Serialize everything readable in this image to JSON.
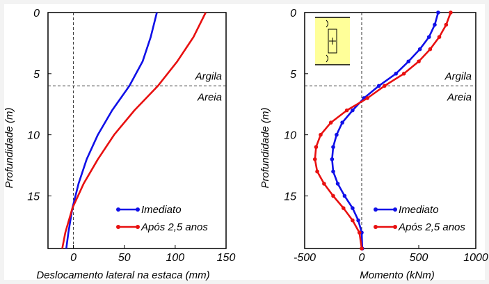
{
  "chart_data": [
    {
      "type": "line",
      "xlabel": "Deslocamento lateral na estaca (mm)",
      "ylabel": "Profundidade (m)",
      "xlim": [
        -25,
        150
      ],
      "ylim": [
        19.3,
        0
      ],
      "xticks": [
        0,
        50,
        100,
        150
      ],
      "yticks": [
        0,
        5,
        10,
        15
      ],
      "boundary": {
        "depth": 6,
        "label_above": "Argila",
        "label_below": "Areia"
      },
      "zero_line": 0,
      "legend": "bottom-right",
      "series": [
        {
          "name": "Imediato",
          "color": "#1010e8",
          "markers": false,
          "points": [
            [
              82,
              0
            ],
            [
              76,
              2
            ],
            [
              68,
              4
            ],
            [
              55,
              6
            ],
            [
              38,
              8
            ],
            [
              24,
              10
            ],
            [
              13,
              12
            ],
            [
              5,
              14
            ],
            [
              -1,
              16
            ],
            [
              -5,
              18
            ],
            [
              -7,
              19.3
            ]
          ]
        },
        {
          "name": "Após 2,5 anos",
          "color": "#e81010",
          "markers": false,
          "points": [
            [
              130,
              0
            ],
            [
              118,
              2
            ],
            [
              102,
              4
            ],
            [
              83,
              6
            ],
            [
              60,
              8
            ],
            [
              40,
              10
            ],
            [
              24,
              12
            ],
            [
              10,
              14
            ],
            [
              -1,
              16
            ],
            [
              -8,
              18
            ],
            [
              -11,
              19.3
            ]
          ]
        }
      ]
    },
    {
      "type": "line",
      "xlabel": "Momento (kNm)",
      "ylabel": "Profundidade (m)",
      "xlim": [
        -500,
        1000
      ],
      "ylim": [
        19.3,
        0
      ],
      "xticks": [
        -500,
        0,
        500,
        1000
      ],
      "yticks": [
        0,
        5,
        10,
        15
      ],
      "boundary": {
        "depth": 6,
        "label_above": "Argila",
        "label_below": "Areia"
      },
      "zero_line": 0,
      "legend": "bottom-right",
      "inset": "pile-moment-diagram",
      "series": [
        {
          "name": "Imediato",
          "color": "#1010e8",
          "markers": true,
          "points": [
            [
              670,
              0
            ],
            [
              640,
              1
            ],
            [
              590,
              2
            ],
            [
              510,
              3
            ],
            [
              410,
              4
            ],
            [
              300,
              5
            ],
            [
              150,
              6
            ],
            [
              20,
              7
            ],
            [
              -80,
              8
            ],
            [
              -170,
              9
            ],
            [
              -220,
              10
            ],
            [
              -250,
              11
            ],
            [
              -260,
              12
            ],
            [
              -250,
              13
            ],
            [
              -210,
              14
            ],
            [
              -150,
              15
            ],
            [
              -80,
              16
            ],
            [
              -30,
              17
            ],
            [
              0,
              18
            ],
            [
              5,
              19.3
            ]
          ]
        },
        {
          "name": "Após 2,5 anos",
          "color": "#e81010",
          "markers": true,
          "points": [
            [
              780,
              0
            ],
            [
              740,
              1
            ],
            [
              680,
              2
            ],
            [
              600,
              3
            ],
            [
              500,
              4
            ],
            [
              370,
              5
            ],
            [
              200,
              6
            ],
            [
              50,
              7
            ],
            [
              -130,
              8
            ],
            [
              -270,
              9
            ],
            [
              -360,
              10
            ],
            [
              -400,
              11
            ],
            [
              -410,
              12
            ],
            [
              -390,
              13
            ],
            [
              -330,
              14
            ],
            [
              -250,
              15
            ],
            [
              -160,
              16
            ],
            [
              -80,
              17
            ],
            [
              -20,
              18
            ],
            [
              0,
              19.3
            ]
          ]
        }
      ]
    }
  ]
}
